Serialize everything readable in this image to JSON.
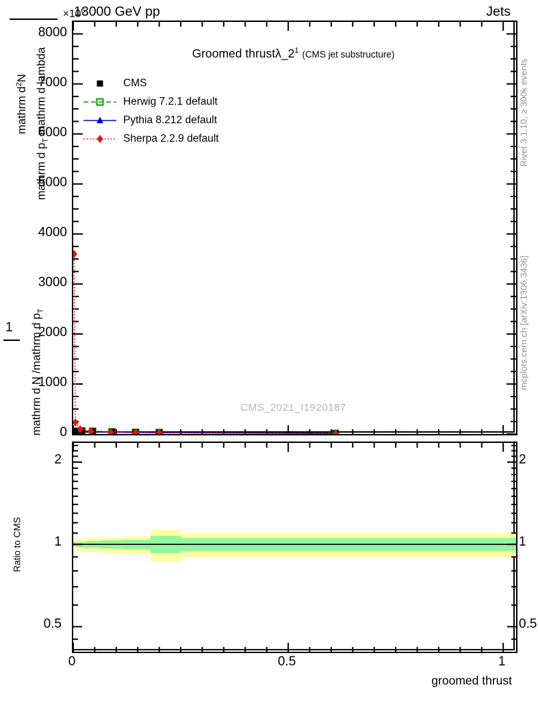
{
  "header": {
    "multiplier": "×10",
    "multiplier_exp": "6",
    "beam": "13000 GeV pp",
    "right": "Jets"
  },
  "title": {
    "main": "Groomed thrust",
    "lambda": "λ_2",
    "sup": "1",
    "note": "(CMS jet substructure)"
  },
  "legend": {
    "items": [
      {
        "label": "CMS",
        "color": "#000000",
        "marker": "square",
        "line": "none"
      },
      {
        "label": "Herwig 7.2.1 default",
        "color": "#00a000",
        "marker": "open-square",
        "line": "dashed"
      },
      {
        "label": "Pythia 8.212 default",
        "color": "#0000d0",
        "marker": "triangle",
        "line": "solid"
      },
      {
        "label": "Sherpa 2.2.9 default",
        "color": "#ee1111",
        "marker": "diamond",
        "line": "dotted"
      }
    ]
  },
  "ylabel": {
    "upper_num_pre": "mathrm d",
    "upper_num_sup": "2",
    "upper_num_post": "N",
    "upper_den_pre": "mathrm d p",
    "upper_den_sub": "T",
    "upper_den_post": " mathrm d lambda",
    "lower_num": "1",
    "lower_den_pre": "mathrm d N /mathrm d p",
    "lower_den_sub": "T"
  },
  "ratio_label": "Ratio to CMS",
  "xlabel": "groomed thrust",
  "watermark": "CMS_2021_I1920187",
  "side_notes": {
    "top": "Rivet 3.1.10, ≥ 300k events",
    "bottom": "mcplots.cern.ch [arXiv:1306.3436]"
  },
  "colors": {
    "band_yellow": "#ffffa0",
    "band_green": "#92f79e",
    "frame": "#000000",
    "gray_text": "#8f8f8f",
    "watermark_gray": "#b5b5b5"
  },
  "chart_data": {
    "type": "line",
    "title": "Groomed thrust λ_2^1 (CMS jet substructure)",
    "xlabel": "groomed thrust",
    "ylabel": "1/(dN/dp_T) d^2N/(dp_T dlambda)",
    "y_multiplier": "×10^6",
    "xlim": [
      0,
      1.03
    ],
    "ylim": [
      0,
      8240
    ],
    "y_major_ticks": [
      0,
      1000,
      2000,
      3000,
      4000,
      5000,
      6000,
      7000,
      8000
    ],
    "y_minor_step": 250,
    "x_major_ticks": [
      0,
      0.5,
      1
    ],
    "x_minor_step": 0.05,
    "grid": false,
    "legend_position": "upper-left",
    "series": [
      {
        "name": "CMS",
        "color": "#000000",
        "marker": "square",
        "line": "none",
        "x": [
          0.005,
          0.02,
          0.045,
          0.09,
          0.145,
          0.2,
          0.61
        ],
        "y": [
          55,
          60,
          52,
          42,
          33,
          28,
          12
        ]
      },
      {
        "name": "Herwig 7.2.1 default",
        "color": "#00a000",
        "marker": "open-square",
        "line": "dashed",
        "x": [
          0.005,
          0.02,
          0.045,
          0.09,
          0.145,
          0.2,
          0.61
        ],
        "y": [
          58,
          63,
          55,
          44,
          34,
          29,
          12
        ]
      },
      {
        "name": "Pythia 8.212 default",
        "color": "#0000d0",
        "marker": "triangle",
        "line": "solid",
        "x": [
          0.005,
          0.02,
          0.045,
          0.09,
          0.145,
          0.2,
          0.61
        ],
        "y": [
          50,
          56,
          49,
          40,
          31,
          26,
          11
        ]
      },
      {
        "name": "Sherpa 2.2.9 default",
        "color": "#ee1111",
        "marker": "diamond",
        "line": "dotted",
        "x": [
          0.002,
          0.005,
          0.016,
          0.041,
          0.087,
          0.145,
          0.2,
          0.61
        ],
        "y": [
          3600,
          233,
          96,
          55,
          40,
          30,
          28,
          12
        ]
      }
    ],
    "ratio": {
      "label": "Ratio to CMS",
      "scale": "log",
      "ylim": [
        0.405,
        2.35
      ],
      "y_major_ticks": [
        0.5,
        1,
        2
      ],
      "y_minor_ticks": [
        0.45,
        0.6,
        0.7,
        0.8,
        0.9,
        1.1,
        1.2,
        1.3,
        1.4,
        1.5,
        1.6,
        1.7,
        1.8,
        1.9,
        2.1,
        2.2,
        2.3
      ],
      "reference": 1,
      "bands": [
        {
          "x0": 0,
          "x1": 0.012,
          "yellow": [
            0.95,
            1.05
          ],
          "green": [
            0.98,
            1.02
          ]
        },
        {
          "x0": 0.012,
          "x1": 0.03,
          "yellow": [
            0.94,
            1.045
          ],
          "green": [
            0.975,
            1.02
          ]
        },
        {
          "x0": 0.03,
          "x1": 0.065,
          "yellow": [
            0.94,
            1.06
          ],
          "green": [
            0.97,
            1.03
          ]
        },
        {
          "x0": 0.065,
          "x1": 0.115,
          "yellow": [
            0.93,
            1.06
          ],
          "green": [
            0.965,
            1.035
          ]
        },
        {
          "x0": 0.115,
          "x1": 0.18,
          "yellow": [
            0.92,
            1.07
          ],
          "green": [
            0.96,
            1.04
          ]
        },
        {
          "x0": 0.18,
          "x1": 0.25,
          "yellow": [
            0.865,
            1.13
          ],
          "green": [
            0.93,
            1.075
          ]
        },
        {
          "x0": 0.25,
          "x1": 1.03,
          "yellow": [
            0.9,
            1.1
          ],
          "green": [
            0.945,
            1.055
          ]
        }
      ]
    }
  }
}
